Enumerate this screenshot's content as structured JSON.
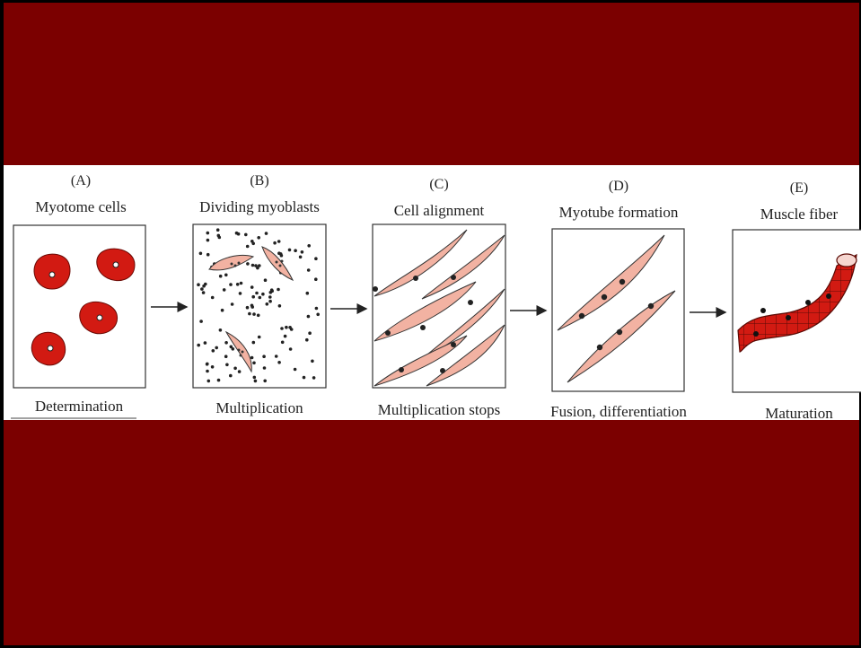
{
  "panels": [
    {
      "letter": "(A)",
      "title": "Myotome cells",
      "caption": "Determination"
    },
    {
      "letter": "(B)",
      "title": "Dividing myoblasts",
      "caption": "Multiplication"
    },
    {
      "letter": "(C)",
      "title": "Cell alignment",
      "caption": "Multiplication stops"
    },
    {
      "letter": "(D)",
      "title": "Myotube formation",
      "caption": "Fusion, differentiation"
    },
    {
      "letter": "(E)",
      "title": "Muscle fiber",
      "caption": "Maturation"
    }
  ],
  "colors": {
    "background": "#7b0000",
    "band": "#ffffff",
    "cell_red": "#d21a12",
    "cell_pink": "#f2b2a2",
    "ink": "#222222"
  }
}
